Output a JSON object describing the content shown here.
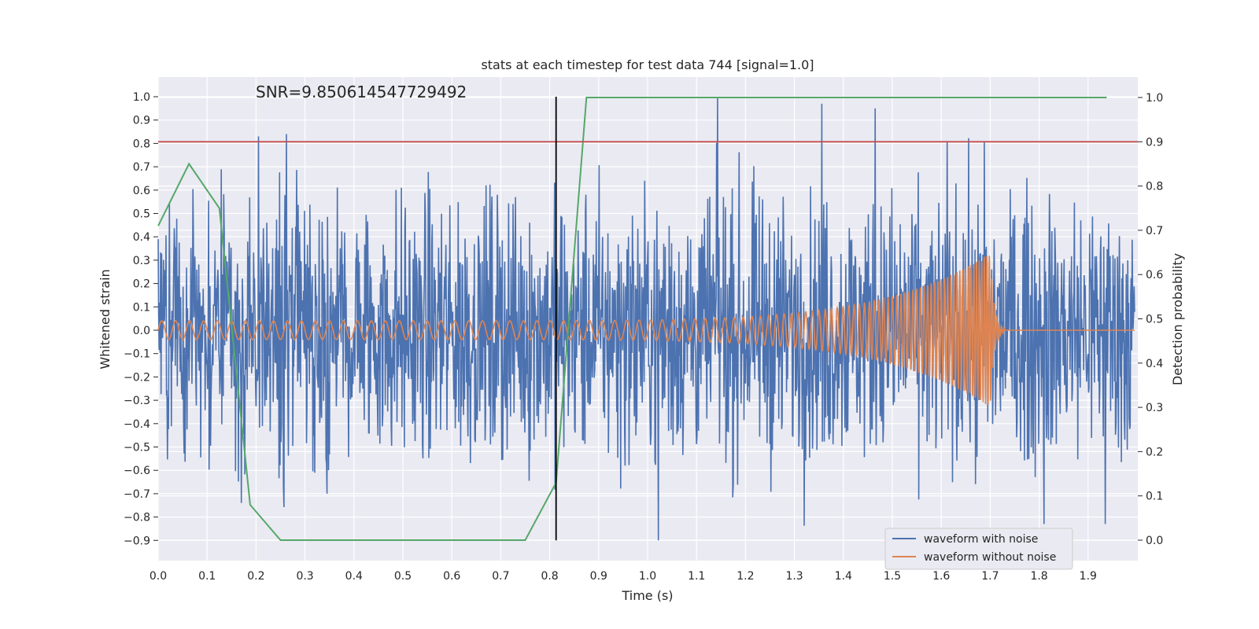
{
  "chart_data": {
    "type": "line",
    "title": "stats at each timestep for test data 744 [signal=1.0]",
    "annotation": "SNR=9.850614547729492",
    "xlabel": "Time (s)",
    "ylabel": "Whitened strain",
    "y2label": "Detection probability",
    "xlim": [
      0.0,
      2.0
    ],
    "ylim": [
      -1.0,
      1.1
    ],
    "y2lim": [
      -0.05,
      1.05
    ],
    "x_ticks": [
      "0.0",
      "0.1",
      "0.2",
      "0.3",
      "0.4",
      "0.5",
      "0.6",
      "0.7",
      "0.8",
      "0.9",
      "1.0",
      "1.1",
      "1.2",
      "1.3",
      "1.4",
      "1.5",
      "1.6",
      "1.7",
      "1.8",
      "1.9"
    ],
    "y_ticks": [
      "1.0",
      "0.9",
      "0.8",
      "0.7",
      "0.6",
      "0.5",
      "0.4",
      "0.3",
      "0.2",
      "0.1",
      "0.0",
      "−0.1",
      "−0.2",
      "−0.3",
      "−0.4",
      "−0.5",
      "−0.6",
      "−0.7",
      "−0.8",
      "−0.9"
    ],
    "y2_ticks": [
      "1.0",
      "0.9",
      "0.8",
      "0.7",
      "0.6",
      "0.5",
      "0.4",
      "0.3",
      "0.2",
      "0.1",
      "0.0"
    ],
    "threshold_y2": 0.9,
    "marker_time": 0.813,
    "series": [
      {
        "name": "waveform with noise",
        "color": "#4c72b0",
        "axis": "left",
        "noise_amplitude": 0.28,
        "peaks": [
          {
            "x": 0.205,
            "y": 0.83
          },
          {
            "x": 0.262,
            "y": 0.84
          },
          {
            "x": 1.143,
            "y": 1.0
          },
          {
            "x": 1.356,
            "y": 0.97
          },
          {
            "x": 1.465,
            "y": 0.95
          },
          {
            "x": 1.612,
            "y": 0.81
          },
          {
            "x": 1.688,
            "y": 0.81
          },
          {
            "x": 1.022,
            "y": -0.9
          },
          {
            "x": 1.81,
            "y": -0.83
          },
          {
            "x": 1.935,
            "y": -0.83
          },
          {
            "x": 0.17,
            "y": -0.74
          },
          {
            "x": 0.32,
            "y": -0.61
          }
        ]
      },
      {
        "name": "waveform without noise",
        "color": "#dd8452",
        "axis": "left",
        "chirp": {
          "amp_start": 0.04,
          "amp_end": 0.33,
          "freq_start": 35,
          "freq_end": 200,
          "merger_time": 1.7,
          "ringdown_end": 1.73
        }
      },
      {
        "name": "Detection probability",
        "color": "#55a868",
        "axis": "right",
        "x": [
          0.0,
          0.063,
          0.125,
          0.188,
          0.25,
          0.313,
          0.375,
          0.438,
          0.5,
          0.563,
          0.625,
          0.688,
          0.75,
          0.813,
          0.875,
          0.938,
          1.0,
          1.5,
          1.938
        ],
        "y": [
          0.71,
          0.85,
          0.75,
          0.08,
          0.0,
          0.0,
          0.0,
          0.0,
          0.0,
          0.0,
          0.0,
          0.0,
          0.0,
          0.13,
          1.0,
          1.0,
          1.0,
          1.0,
          1.0
        ]
      }
    ],
    "legend": {
      "position": "lower-right",
      "entries": [
        "waveform with noise",
        "waveform without noise"
      ]
    },
    "colors": {
      "background": "#eaeaf2",
      "grid": "#ffffff",
      "threshold": "#c44e52",
      "marker": "#000000"
    }
  }
}
